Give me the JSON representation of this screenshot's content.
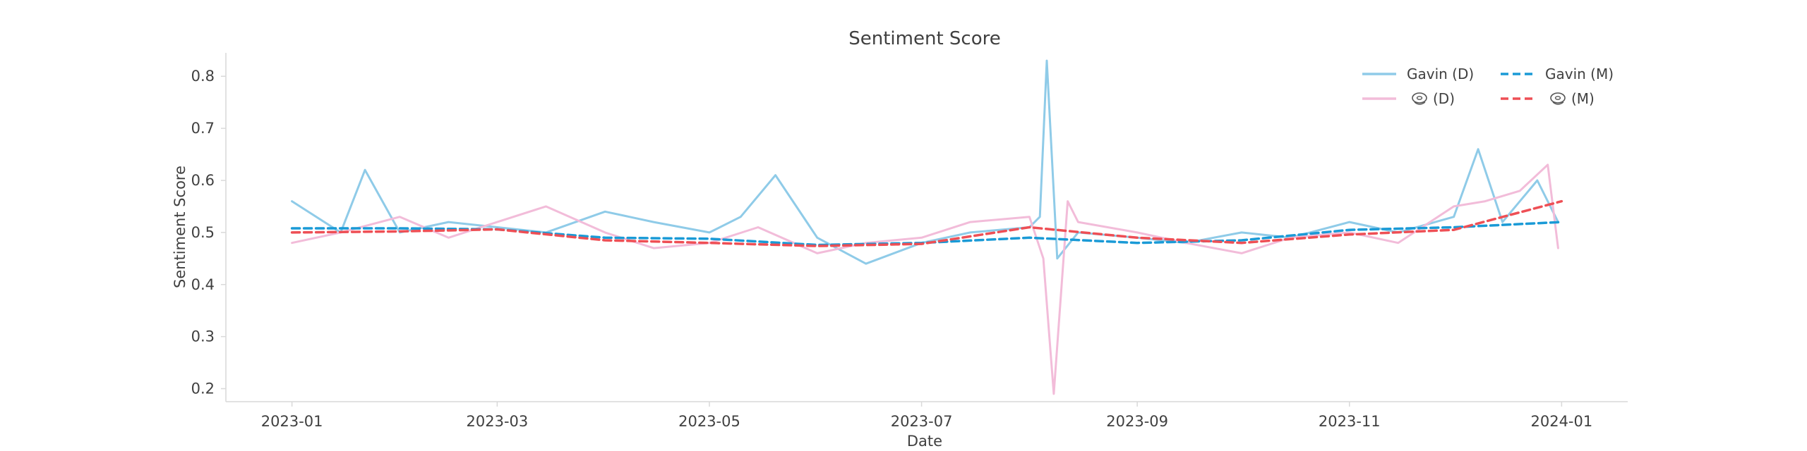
{
  "chart_data": {
    "type": "line",
    "title": "Sentiment Score",
    "xlabel": "Date",
    "ylabel": "Sentiment Score",
    "xlim": [
      "2022-12-13",
      "2024-01-20"
    ],
    "ylim": [
      0.175,
      0.845
    ],
    "x_ticks": [
      "2023-01",
      "2023-03",
      "2023-05",
      "2023-07",
      "2023-09",
      "2023-11",
      "2024-01"
    ],
    "y_ticks": [
      0.2,
      0.3,
      0.4,
      0.5,
      0.6,
      0.7,
      0.8
    ],
    "legend": {
      "placement": "top-right",
      "columns": 2
    },
    "series": [
      {
        "name": "Gavin (D)",
        "label": "Gavin (D)",
        "style": "solid",
        "color": "#8fcbe8",
        "x": [
          "2023-01-01",
          "2023-01-15",
          "2023-01-22",
          "2023-02-01",
          "2023-02-15",
          "2023-03-01",
          "2023-03-15",
          "2023-04-01",
          "2023-04-15",
          "2023-05-01",
          "2023-05-10",
          "2023-05-20",
          "2023-06-01",
          "2023-06-15",
          "2023-07-01",
          "2023-07-15",
          "2023-08-01",
          "2023-08-04",
          "2023-08-06",
          "2023-08-09",
          "2023-08-15",
          "2023-09-01",
          "2023-09-15",
          "2023-10-01",
          "2023-10-15",
          "2023-11-01",
          "2023-11-15",
          "2023-12-01",
          "2023-12-08",
          "2023-12-15",
          "2023-12-25",
          "2023-12-31"
        ],
        "values": [
          0.56,
          0.5,
          0.62,
          0.5,
          0.52,
          0.51,
          0.5,
          0.54,
          0.52,
          0.5,
          0.53,
          0.61,
          0.49,
          0.44,
          0.48,
          0.5,
          0.51,
          0.53,
          0.83,
          0.45,
          0.5,
          0.49,
          0.48,
          0.5,
          0.49,
          0.52,
          0.5,
          0.53,
          0.66,
          0.52,
          0.6,
          0.52
        ]
      },
      {
        "name": "🥯 (D)",
        "label": "(D)",
        "style": "solid",
        "color": "#f2bcd9",
        "x": [
          "2023-01-01",
          "2023-01-15",
          "2023-02-01",
          "2023-02-15",
          "2023-03-01",
          "2023-03-15",
          "2023-04-01",
          "2023-04-15",
          "2023-05-01",
          "2023-05-15",
          "2023-06-01",
          "2023-06-15",
          "2023-07-01",
          "2023-07-15",
          "2023-08-01",
          "2023-08-05",
          "2023-08-08",
          "2023-08-12",
          "2023-08-15",
          "2023-09-01",
          "2023-09-15",
          "2023-10-01",
          "2023-10-15",
          "2023-11-01",
          "2023-11-15",
          "2023-12-01",
          "2023-12-10",
          "2023-12-20",
          "2023-12-28",
          "2023-12-31"
        ],
        "values": [
          0.48,
          0.5,
          0.53,
          0.49,
          0.52,
          0.55,
          0.5,
          0.47,
          0.48,
          0.51,
          0.46,
          0.48,
          0.49,
          0.52,
          0.53,
          0.45,
          0.19,
          0.56,
          0.52,
          0.5,
          0.48,
          0.46,
          0.49,
          0.5,
          0.48,
          0.55,
          0.56,
          0.58,
          0.63,
          0.47
        ]
      },
      {
        "name": "Gavin (M)",
        "label": "Gavin (M)",
        "style": "dashed",
        "color": "#1a9ad6",
        "x": [
          "2023-01-01",
          "2023-02-01",
          "2023-03-01",
          "2023-04-01",
          "2023-05-01",
          "2023-06-01",
          "2023-07-01",
          "2023-08-01",
          "2023-09-01",
          "2023-10-01",
          "2023-11-01",
          "2023-12-01",
          "2024-01-01"
        ],
        "values": [
          0.508,
          0.508,
          0.506,
          0.49,
          0.488,
          0.476,
          0.48,
          0.49,
          0.48,
          0.485,
          0.505,
          0.51,
          0.52
        ]
      },
      {
        "name": "🥯 (M)",
        "label": "(M)",
        "style": "dashed",
        "color": "#ee4f55",
        "x": [
          "2023-01-01",
          "2023-02-01",
          "2023-03-01",
          "2023-04-01",
          "2023-05-01",
          "2023-06-01",
          "2023-07-01",
          "2023-08-01",
          "2023-09-01",
          "2023-10-01",
          "2023-11-01",
          "2023-12-01",
          "2024-01-01"
        ],
        "values": [
          0.5,
          0.502,
          0.506,
          0.485,
          0.48,
          0.474,
          0.478,
          0.51,
          0.49,
          0.48,
          0.496,
          0.505,
          0.56
        ]
      }
    ]
  }
}
